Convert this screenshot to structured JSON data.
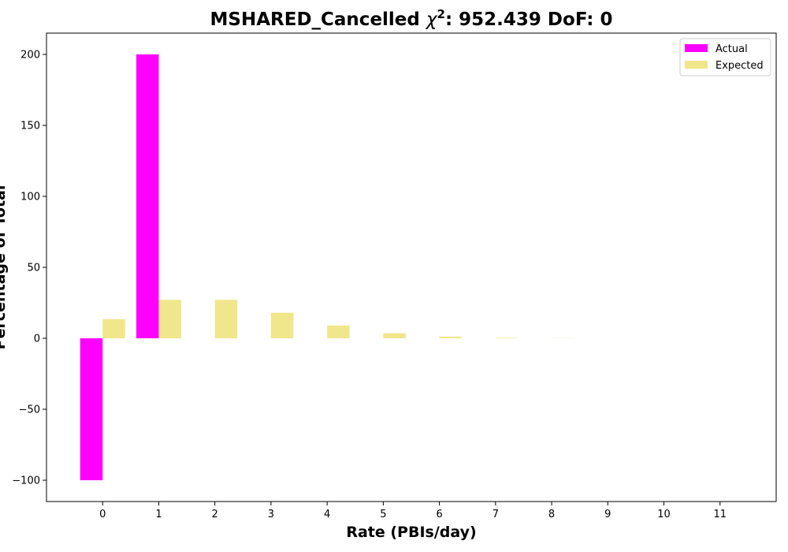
{
  "chart_data": {
    "type": "bar",
    "title_name": "MSHARED_Cancelled",
    "title_chi": "χ",
    "title_sup": "2",
    "title_rest": ": 952.439 DoF: 0",
    "xlabel": "Rate (PBIs/day)",
    "ylabel": "Percentage of Total",
    "categories": [
      "0",
      "1",
      "2",
      "3",
      "4",
      "5",
      "6",
      "7",
      "8",
      "9",
      "10",
      "11"
    ],
    "x": [
      0,
      1,
      2,
      3,
      4,
      5,
      6,
      7,
      8,
      9,
      10,
      11
    ],
    "series": [
      {
        "name": "Actual",
        "color": "#ff00ff",
        "values": [
          -100,
          200,
          0,
          0,
          0,
          0,
          0,
          0,
          0,
          0,
          0,
          0
        ]
      },
      {
        "name": "Expected",
        "color": "#f0e68c",
        "values": [
          13.5,
          27.1,
          27.1,
          18.0,
          9.0,
          3.6,
          1.2,
          0.3,
          0.1,
          0.0,
          0.0,
          0.0
        ]
      }
    ],
    "xlim": [
      -1,
      12
    ],
    "ylim": [
      -115,
      215
    ],
    "yticks": [
      -100,
      -50,
      0,
      50,
      100,
      150,
      200
    ],
    "yticklabels": [
      "−100",
      "−50",
      "0",
      "50",
      "100",
      "150",
      "200"
    ],
    "grid": false,
    "legend_position": "top-right"
  }
}
